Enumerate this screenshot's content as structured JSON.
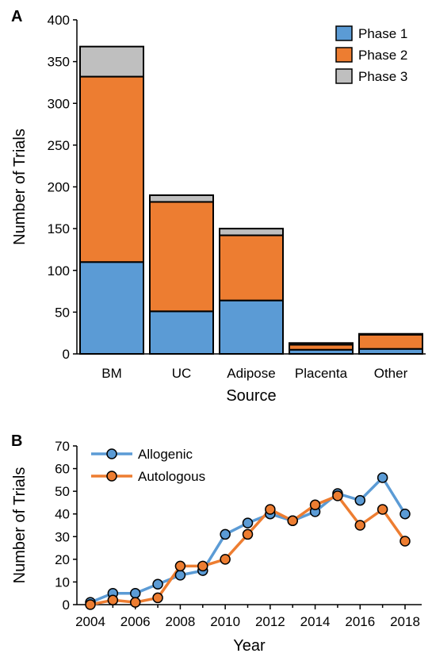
{
  "chart_data": [
    {
      "panel": "A",
      "type": "bar",
      "stacked": true,
      "categories": [
        "BM",
        "UC",
        "Adipose",
        "Placenta",
        "Other"
      ],
      "series": [
        {
          "name": "Phase 1",
          "values": [
            110,
            51,
            64,
            5,
            6
          ],
          "color": "#5b9bd5"
        },
        {
          "name": "Phase 2",
          "values": [
            222,
            131,
            78,
            6,
            17
          ],
          "color": "#ed7d31"
        },
        {
          "name": "Phase 3",
          "values": [
            36,
            8,
            8,
            2,
            1
          ],
          "color": "#bfbfbf"
        }
      ],
      "xlabel": "Source",
      "ylabel": "Number of Trials",
      "ylim": [
        0,
        400
      ],
      "yticks": [
        0,
        50,
        100,
        150,
        200,
        250,
        300,
        350,
        400
      ],
      "legend": "top-right",
      "grid": false
    },
    {
      "panel": "B",
      "type": "line",
      "x": [
        2004,
        2005,
        2006,
        2007,
        2008,
        2009,
        2010,
        2011,
        2012,
        2013,
        2014,
        2015,
        2016,
        2017,
        2018
      ],
      "series": [
        {
          "name": "Allogenic",
          "values": [
            1,
            5,
            5,
            9,
            13,
            15,
            31,
            36,
            40,
            37,
            41,
            49,
            46,
            56,
            40
          ],
          "color": "#5b9bd5"
        },
        {
          "name": "Autologous",
          "values": [
            0,
            2,
            1,
            3,
            17,
            17,
            20,
            31,
            42,
            37,
            44,
            48,
            35,
            42,
            28
          ],
          "color": "#ed7d31"
        }
      ],
      "xlabel": "Year",
      "ylabel": "Number of Trials",
      "ylim": [
        0,
        70
      ],
      "yticks": [
        0,
        10,
        20,
        30,
        40,
        50,
        60,
        70
      ],
      "xticks": [
        2004,
        2006,
        2008,
        2010,
        2012,
        2014,
        2016,
        2018
      ],
      "legend": "top-left",
      "grid": false
    }
  ]
}
